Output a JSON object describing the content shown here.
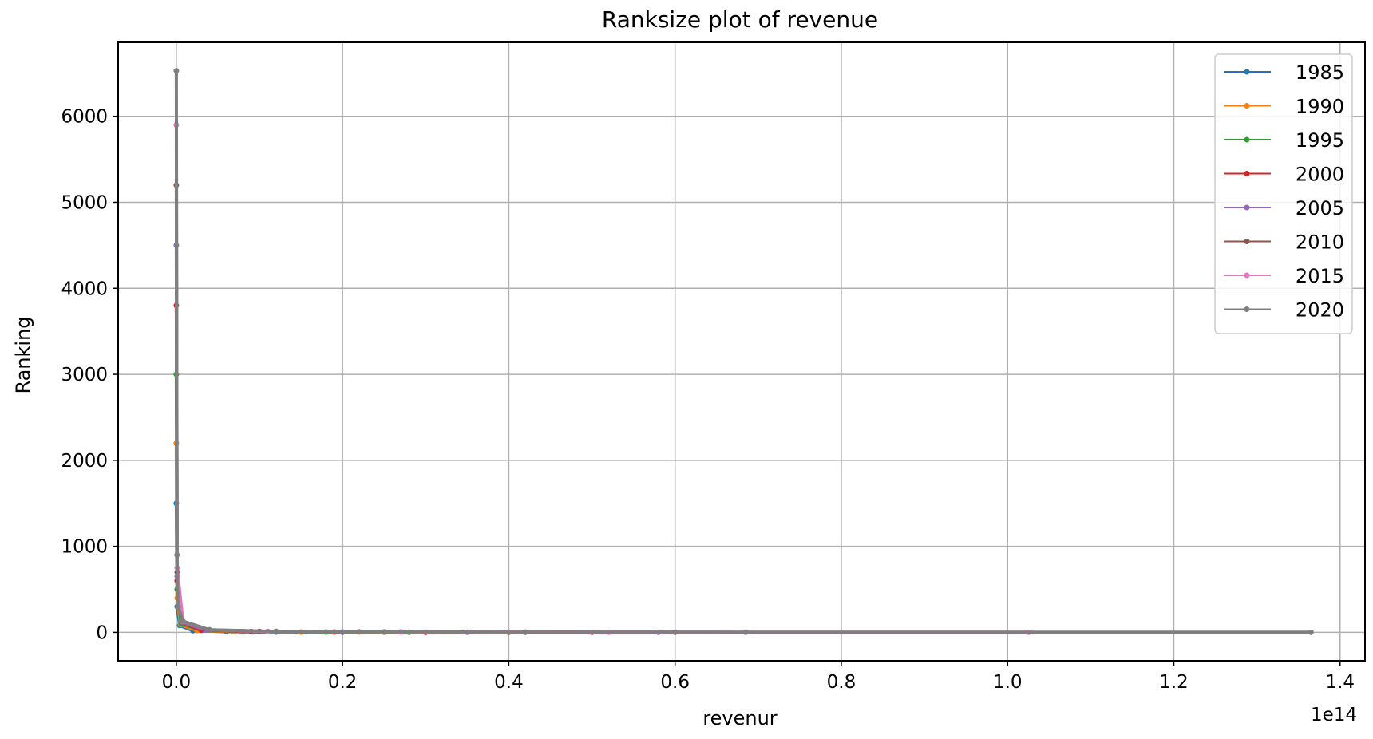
{
  "chart_data": {
    "type": "line",
    "title": "Ranksize plot of revenue",
    "xlabel": "revenur",
    "ylabel": "Ranking",
    "x_offset_label": "1e14",
    "xlim": [
      -0.07,
      1.43
    ],
    "ylim": [
      -330,
      6860
    ],
    "x_ticks": [
      0.0,
      0.2,
      0.4,
      0.6,
      0.8,
      1.0,
      1.2,
      1.4
    ],
    "x_tick_labels": [
      "0.0",
      "0.2",
      "0.4",
      "0.6",
      "0.8",
      "1.0",
      "1.2",
      "1.4"
    ],
    "y_ticks": [
      0,
      1000,
      2000,
      3000,
      4000,
      5000,
      6000
    ],
    "y_tick_labels": [
      "0",
      "1000",
      "2000",
      "3000",
      "4000",
      "5000",
      "6000"
    ],
    "grid": true,
    "legend_position": "top-right",
    "series": [
      {
        "name": "1985",
        "color": "#1f77b4",
        "points": [
          [
            0.0,
            1500
          ],
          [
            0.001,
            300
          ],
          [
            0.004,
            80
          ],
          [
            0.02,
            20
          ],
          [
            0.06,
            8
          ],
          [
            0.12,
            4
          ],
          [
            0.2,
            2
          ],
          [
            0.3,
            1
          ]
        ]
      },
      {
        "name": "1990",
        "color": "#ff7f0e",
        "points": [
          [
            0.0,
            2200
          ],
          [
            0.001,
            400
          ],
          [
            0.005,
            90
          ],
          [
            0.025,
            22
          ],
          [
            0.07,
            9
          ],
          [
            0.15,
            4
          ],
          [
            0.25,
            2
          ],
          [
            0.4,
            1
          ]
        ]
      },
      {
        "name": "1995",
        "color": "#2ca02c",
        "points": [
          [
            0.0,
            3000
          ],
          [
            0.001,
            500
          ],
          [
            0.006,
            100
          ],
          [
            0.03,
            25
          ],
          [
            0.08,
            10
          ],
          [
            0.18,
            4
          ],
          [
            0.28,
            2
          ],
          [
            0.42,
            1
          ]
        ]
      },
      {
        "name": "2000",
        "color": "#d62728",
        "points": [
          [
            0.0,
            3800
          ],
          [
            0.001,
            600
          ],
          [
            0.007,
            110
          ],
          [
            0.03,
            26
          ],
          [
            0.09,
            10
          ],
          [
            0.19,
            4
          ],
          [
            0.3,
            2
          ],
          [
            0.5,
            1
          ]
        ]
      },
      {
        "name": "2005",
        "color": "#9467bd",
        "points": [
          [
            0.0,
            4500
          ],
          [
            0.001,
            650
          ],
          [
            0.007,
            115
          ],
          [
            0.035,
            28
          ],
          [
            0.1,
            10
          ],
          [
            0.2,
            4
          ],
          [
            0.35,
            2
          ],
          [
            0.58,
            1
          ]
        ]
      },
      {
        "name": "2010",
        "color": "#8c564b",
        "points": [
          [
            0.0,
            5200
          ],
          [
            0.001,
            700
          ],
          [
            0.008,
            120
          ],
          [
            0.04,
            28
          ],
          [
            0.1,
            11
          ],
          [
            0.22,
            5
          ],
          [
            0.4,
            2
          ],
          [
            0.6,
            1
          ]
        ]
      },
      {
        "name": "2015",
        "color": "#e377c2",
        "points": [
          [
            0.0,
            5900
          ],
          [
            0.001,
            750
          ],
          [
            0.008,
            125
          ],
          [
            0.04,
            29
          ],
          [
            0.11,
            11
          ],
          [
            0.27,
            5
          ],
          [
            0.52,
            2
          ],
          [
            1.025,
            1
          ]
        ]
      },
      {
        "name": "2020",
        "color": "#7f7f7f",
        "points": [
          [
            0.0,
            6530
          ],
          [
            0.0008,
            900
          ],
          [
            0.002,
            300
          ],
          [
            0.008,
            130
          ],
          [
            0.04,
            30
          ],
          [
            0.12,
            12
          ],
          [
            0.25,
            5
          ],
          [
            0.42,
            3
          ],
          [
            0.685,
            2
          ],
          [
            1.365,
            1
          ]
        ]
      }
    ]
  }
}
